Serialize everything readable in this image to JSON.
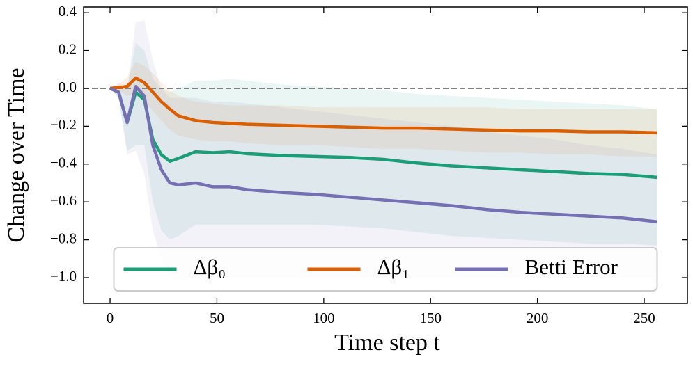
{
  "chart_data": {
    "type": "line",
    "xlabel": "Time step t",
    "ylabel": "Change over Time",
    "x": [
      0,
      4,
      8,
      12,
      16,
      20,
      24,
      28,
      32,
      40,
      48,
      56,
      64,
      80,
      96,
      112,
      128,
      144,
      160,
      176,
      192,
      208,
      224,
      240,
      256
    ],
    "series": [
      {
        "name": "Δβ₀",
        "color": "#1b9e77",
        "values": [
          0,
          -0.02,
          -0.18,
          -0.02,
          -0.06,
          -0.27,
          -0.35,
          -0.385,
          -0.37,
          -0.335,
          -0.34,
          -0.335,
          -0.345,
          -0.355,
          -0.36,
          -0.365,
          -0.375,
          -0.395,
          -0.41,
          -0.42,
          -0.43,
          -0.44,
          -0.45,
          -0.455,
          -0.47
        ],
        "lower": [
          0,
          -0.05,
          -0.33,
          -0.3,
          -0.3,
          -0.6,
          -0.75,
          -0.8,
          -0.78,
          -0.72,
          -0.72,
          -0.72,
          -0.72,
          -0.72,
          -0.72,
          -0.73,
          -0.74,
          -0.76,
          -0.78,
          -0.79,
          -0.8,
          -0.81,
          -0.82,
          -0.82,
          -0.83
        ],
        "upper": [
          0,
          0.01,
          0.0,
          0.24,
          0.2,
          0.05,
          0.0,
          -0.02,
          0.0,
          0.04,
          0.04,
          0.05,
          0.04,
          0.02,
          0.01,
          0.0,
          -0.01,
          -0.03,
          -0.04,
          -0.05,
          -0.06,
          -0.07,
          -0.08,
          -0.09,
          -0.11
        ]
      },
      {
        "name": "Δβ₁",
        "color": "#d95f02",
        "values": [
          0,
          0.005,
          0.01,
          0.055,
          0.03,
          -0.02,
          -0.07,
          -0.11,
          -0.145,
          -0.17,
          -0.18,
          -0.185,
          -0.19,
          -0.195,
          -0.2,
          -0.205,
          -0.21,
          -0.21,
          -0.215,
          -0.22,
          -0.225,
          -0.225,
          -0.23,
          -0.23,
          -0.235
        ],
        "lower": [
          0,
          -0.01,
          -0.04,
          -0.03,
          -0.06,
          -0.12,
          -0.17,
          -0.22,
          -0.25,
          -0.27,
          -0.28,
          -0.28,
          -0.29,
          -0.3,
          -0.3,
          -0.31,
          -0.32,
          -0.32,
          -0.33,
          -0.34,
          -0.34,
          -0.35,
          -0.35,
          -0.36,
          -0.36
        ],
        "upper": [
          0,
          0.02,
          0.06,
          0.14,
          0.12,
          0.08,
          0.03,
          -0.01,
          -0.04,
          -0.07,
          -0.08,
          -0.09,
          -0.09,
          -0.09,
          -0.1,
          -0.1,
          -0.1,
          -0.1,
          -0.1,
          -0.1,
          -0.11,
          -0.11,
          -0.11,
          -0.11,
          -0.11
        ]
      },
      {
        "name": "Betti Error",
        "color": "#7570b3",
        "values": [
          0,
          -0.02,
          -0.18,
          0.01,
          -0.04,
          -0.3,
          -0.43,
          -0.5,
          -0.51,
          -0.5,
          -0.52,
          -0.52,
          -0.535,
          -0.55,
          -0.56,
          -0.575,
          -0.59,
          -0.605,
          -0.62,
          -0.64,
          -0.655,
          -0.665,
          -0.675,
          -0.685,
          -0.705
        ],
        "lower": [
          0,
          -0.05,
          -0.35,
          -0.33,
          -0.45,
          -0.75,
          -0.9,
          -1.0,
          -1.02,
          -1.0,
          -1.0,
          -1.0,
          -1.0,
          -1.0,
          -1.0,
          -1.0,
          -1.0,
          -1.0,
          -1.0,
          -1.0,
          -1.0,
          -1.0,
          -1.0,
          -1.0,
          -1.0
        ],
        "upper": [
          0,
          0.03,
          0.0,
          0.35,
          0.36,
          0.15,
          0.0,
          -0.05,
          -0.05,
          -0.05,
          -0.07,
          -0.07,
          -0.08,
          -0.1,
          -0.12,
          -0.14,
          -0.16,
          -0.18,
          -0.2,
          -0.23,
          -0.25,
          -0.27,
          -0.3,
          -0.32,
          -0.35
        ]
      }
    ],
    "hline": 0,
    "xlim": [
      -12.4,
      270.2
    ],
    "ylim": [
      -1.136,
      0.43
    ],
    "xticks": [
      0,
      50,
      100,
      150,
      200,
      250
    ],
    "yticks": [
      {
        "value": -1.0,
        "label": "−1.0"
      },
      {
        "value": -0.8,
        "label": "−0.8"
      },
      {
        "value": -0.6,
        "label": "−0.6"
      },
      {
        "value": -0.4,
        "label": "−0.4"
      },
      {
        "value": -0.2,
        "label": "−0.2"
      },
      {
        "value": 0,
        "label": "0.0"
      },
      0.2,
      0.4
    ],
    "legend": "lower center",
    "grid": false
  }
}
